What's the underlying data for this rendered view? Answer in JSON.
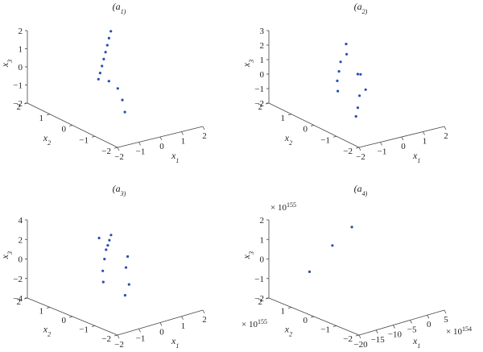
{
  "chart_data": [
    {
      "type": "scatter",
      "title": "(a_1)",
      "xlabel": "x_1",
      "ylabel": "x_2",
      "zlabel": "x_3",
      "xlim": [
        -2,
        2
      ],
      "ylim": [
        -2,
        2
      ],
      "zlim": [
        -2,
        2
      ],
      "xticks": [
        "−2",
        "−1",
        "0",
        "1",
        "2"
      ],
      "yticks": [
        "−2",
        "−1",
        "0",
        "1",
        "2"
      ],
      "zticks": [
        "−2",
        "−1",
        "0",
        "1",
        "2"
      ],
      "marker_color": "#2b4fb0",
      "grid": false,
      "points": [
        {
          "x": 1.7,
          "y": 1.8,
          "z": 1.55
        },
        {
          "x": 1.3,
          "y": 1.5,
          "z": 1.45
        },
        {
          "x": 0.9,
          "y": 1.2,
          "z": 1.35
        },
        {
          "x": 0.5,
          "y": 0.9,
          "z": 1.25
        },
        {
          "x": 0.1,
          "y": 0.6,
          "z": 1.15
        },
        {
          "x": -0.3,
          "y": 0.3,
          "z": 1.05
        },
        {
          "x": -0.7,
          "y": 0.0,
          "z": 0.95
        },
        {
          "x": -1.1,
          "y": -0.3,
          "z": 0.9
        },
        {
          "x": -0.5,
          "y": -0.2,
          "z": 0.5
        },
        {
          "x": -0.3,
          "y": -0.4,
          "z": 0.1
        },
        {
          "x": -0.4,
          "y": -0.7,
          "z": -0.4
        },
        {
          "x": -0.6,
          "y": -1.0,
          "z": -0.9
        }
      ]
    },
    {
      "type": "scatter",
      "title": "(a_2)",
      "xlabel": "x_1",
      "ylabel": "x_2",
      "zlabel": "x_3",
      "xlim": [
        -2,
        2
      ],
      "ylim": [
        -2,
        2
      ],
      "zlim": [
        -2,
        3
      ],
      "xticks": [
        "−2",
        "−1",
        "0",
        "1",
        "2"
      ],
      "yticks": [
        "−2",
        "−1",
        "0",
        "1",
        "2"
      ],
      "zticks": [
        "−2",
        "−1",
        "0",
        "1",
        "2",
        "3"
      ],
      "marker_color": "#2b4fb0",
      "grid": false,
      "points": [
        {
          "x": 1.2,
          "y": 1.6,
          "z": 1.8
        },
        {
          "x": 0.8,
          "y": 1.2,
          "z": 1.5
        },
        {
          "x": 0.2,
          "y": 0.9,
          "z": 1.4
        },
        {
          "x": -0.3,
          "y": 0.5,
          "z": 1.2
        },
        {
          "x": -0.8,
          "y": 0.1,
          "z": 1.0
        },
        {
          "x": -1.2,
          "y": -0.3,
          "z": 0.7
        },
        {
          "x": 0.5,
          "y": 0.3,
          "z": 0.8
        },
        {
          "x": -0.5,
          "y": -0.6,
          "z": 0.3
        },
        {
          "x": -1.0,
          "y": -1.0,
          "z": -0.1
        },
        {
          "x": -1.3,
          "y": -1.2,
          "z": -0.5
        },
        {
          "x": 0.0,
          "y": -0.4,
          "z": 0.4
        },
        {
          "x": 0.9,
          "y": 0.8,
          "z": 0.2
        }
      ]
    },
    {
      "type": "scatter",
      "title": "(a_3)",
      "xlabel": "x_1",
      "ylabel": "x_2",
      "zlabel": "x_3",
      "xlim": [
        -2,
        2
      ],
      "ylim": [
        -2,
        2
      ],
      "zlim": [
        -4,
        4
      ],
      "xticks": [
        "−2",
        "−1",
        "0",
        "1",
        "2"
      ],
      "yticks": [
        "−2",
        "−1",
        "0",
        "1",
        "2"
      ],
      "zticks": [
        "−4",
        "−2",
        "0",
        "2",
        "4"
      ],
      "marker_color": "#2b4fb0",
      "grid": false,
      "points": [
        {
          "x": 1.5,
          "y": 1.6,
          "z": 1.4
        },
        {
          "x": 1.0,
          "y": 1.2,
          "z": 1.6
        },
        {
          "x": 0.5,
          "y": 0.8,
          "z": 1.8
        },
        {
          "x": 0.0,
          "y": 0.4,
          "z": 2.1
        },
        {
          "x": -0.5,
          "y": 0.0,
          "z": 1.8
        },
        {
          "x": -1.0,
          "y": -0.4,
          "z": 1.2
        },
        {
          "x": -1.4,
          "y": -0.8,
          "z": 0.6
        },
        {
          "x": 0.3,
          "y": -0.2,
          "z": 0.4
        },
        {
          "x": -0.3,
          "y": -0.9,
          "z": -0.4
        },
        {
          "x": 0.8,
          "y": 0.2,
          "z": 0.9
        },
        {
          "x": -0.8,
          "y": -1.2,
          "z": -1.0
        },
        {
          "x": 0.2,
          "y": 0.9,
          "z": 2.8
        }
      ]
    },
    {
      "type": "scatter",
      "title": "(a_4)",
      "xlabel": "x_1",
      "ylabel": "x_2",
      "zlabel": "x_3",
      "x_multiplier": "× 10^154",
      "y_multiplier": "× 10^155",
      "z_multiplier": "× 10^155",
      "xlim": [
        -20,
        5
      ],
      "ylim": [
        -2,
        2
      ],
      "zlim": [
        -2,
        2
      ],
      "xticks": [
        "−20",
        "−15",
        "−10",
        "−5",
        "0",
        "5"
      ],
      "yticks": [
        "−2",
        "−1",
        "0",
        "1",
        "2"
      ],
      "zticks": [
        "−2",
        "−1",
        "0",
        "1",
        "2"
      ],
      "marker_color": "#2b4fb0",
      "grid": false,
      "points": [
        {
          "x": -18.0,
          "y": 0.5,
          "z": 0.3
        },
        {
          "x": -8.0,
          "y": 1.0,
          "z": 1.0
        },
        {
          "x": 3.0,
          "y": 1.8,
          "z": 1.0
        }
      ]
    }
  ]
}
